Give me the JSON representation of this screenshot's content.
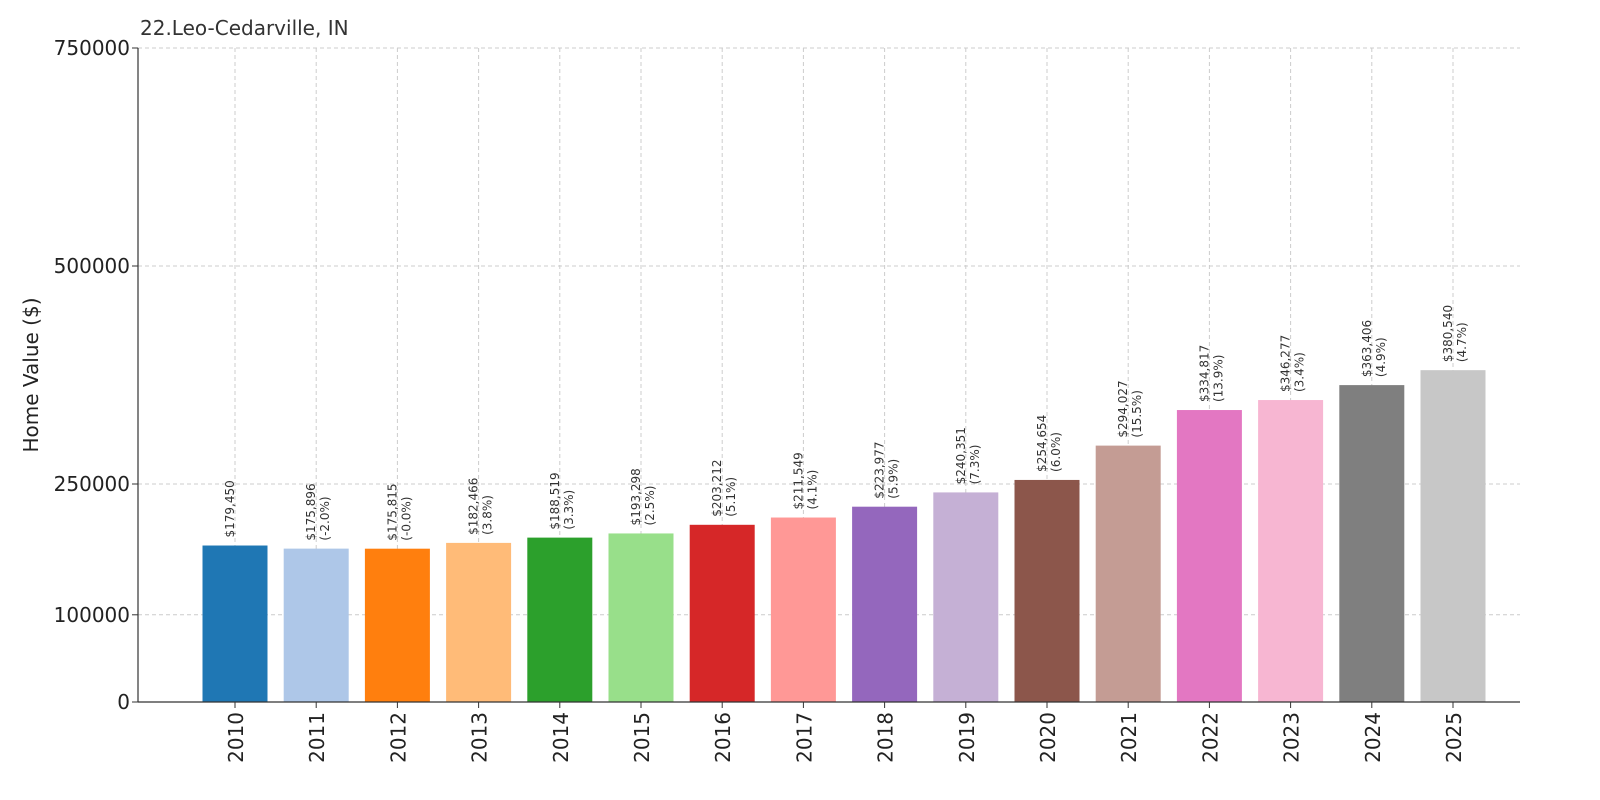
{
  "chart_data": {
    "type": "bar",
    "title": "22.Leo-Cedarville, IN",
    "xlabel": "",
    "ylabel": "Home Value ($)",
    "ylim": [
      0,
      750000
    ],
    "yticks": [
      "0",
      "100000",
      "250000",
      "500000",
      "750000"
    ],
    "grid": true,
    "categories": [
      "2010",
      "2011",
      "2012",
      "2013",
      "2014",
      "2015",
      "2016",
      "2017",
      "2018",
      "2019",
      "2020",
      "2021",
      "2022",
      "2023",
      "2024",
      "2025"
    ],
    "values": [
      179450,
      175896,
      175815,
      182466,
      188519,
      193298,
      203212,
      211549,
      223977,
      240351,
      254654,
      294027,
      334817,
      346277,
      363406,
      380540
    ],
    "value_labels": [
      "$179,450",
      "$175,896",
      "$175,815",
      "$182,466",
      "$188,519",
      "$193,298",
      "$203,212",
      "$211,549",
      "$223,977",
      "$240,351",
      "$254,654",
      "$294,027",
      "$334,817",
      "$346,277",
      "$363,406",
      "$380,540"
    ],
    "change_labels": [
      "",
      "(-2.0%)",
      "(-0.0%)",
      "(3.8%)",
      "(3.3%)",
      "(2.5%)",
      "(5.1%)",
      "(4.1%)",
      "(5.9%)",
      "(7.3%)",
      "(6.0%)",
      "(15.5%)",
      "(13.9%)",
      "(3.4%)",
      "(4.9%)",
      "(4.7%)"
    ],
    "colors": [
      "#1f77b4",
      "#aec7e8",
      "#ff7f0e",
      "#ffbb78",
      "#2ca02c",
      "#98df8a",
      "#d62728",
      "#ff9896",
      "#9467bd",
      "#c5b0d5",
      "#8c564b",
      "#c49c94",
      "#e377c2",
      "#f7b6d2",
      "#7f7f7f",
      "#c7c7c7"
    ]
  }
}
